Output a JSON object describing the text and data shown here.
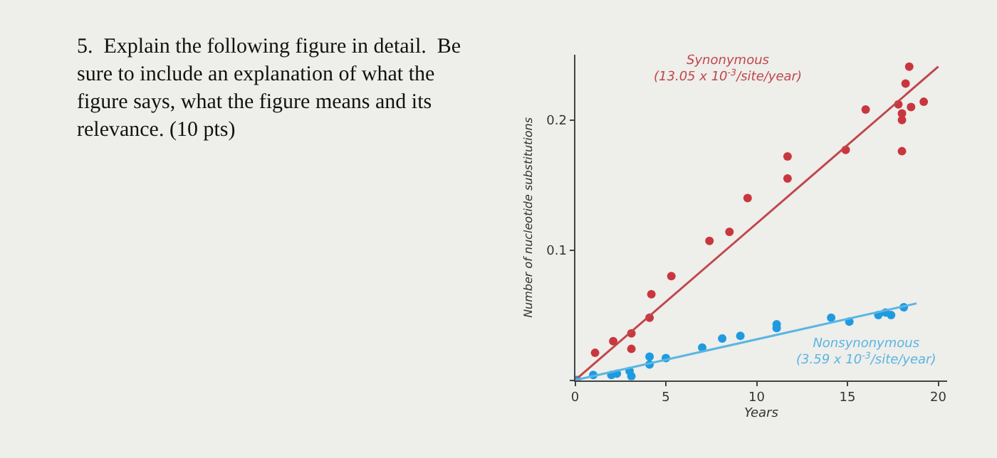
{
  "chart_data": {
    "type": "scatter",
    "xlabel": "Years",
    "ylabel": "Number of nucleotide substitutions",
    "annotations": [
      "5.  Explain the following figure in detail.  Be\nsure to include an explanation of what the\nfigure says, what the figure means and its\nrelevance. (10 pts)"
    ],
    "xlim": [
      0,
      20.5
    ],
    "ylim": [
      0,
      0.25
    ],
    "xticks": [
      0,
      5,
      10,
      15,
      20
    ],
    "yticks": [
      {
        "value": 0,
        "label": null
      },
      0.1,
      0.2
    ],
    "grid": false,
    "legend": false,
    "marker": "circle",
    "series": [
      {
        "color": "#c8373d",
        "x": [
          0.1,
          1.1,
          2.1,
          3.1,
          3.1,
          4.1,
          4.2,
          5.3,
          7.4,
          8.5,
          9.5,
          11.7,
          11.7,
          14.9,
          16.0,
          17.8,
          18.0,
          18.0,
          18.0,
          18.2,
          18.4,
          18.5,
          19.2
        ],
        "values": [
          0.0,
          0.021,
          0.03,
          0.036,
          0.024,
          0.048,
          0.066,
          0.08,
          0.107,
          0.114,
          0.14,
          0.155,
          0.172,
          0.177,
          0.208,
          0.212,
          0.176,
          0.2,
          0.205,
          0.228,
          0.241,
          0.21,
          0.214
        ]
      },
      {
        "type": "line",
        "marker": "none",
        "name": "Synonymous\n(13.05 x 10$^{-3}$/site/year)",
        "color": "#c0474a",
        "x": [
          0,
          20
        ],
        "values": [
          0,
          0.241
        ]
      },
      {
        "color": "#1e9be0",
        "x": [
          0,
          1.0,
          2.0,
          2.3,
          3.0,
          3.1,
          4.1,
          4.1,
          5.0,
          7.0,
          8.1,
          9.1,
          11.1,
          11.1,
          14.1,
          15.1,
          16.7,
          17.1,
          17.4,
          18.1
        ],
        "values": [
          0,
          0.004,
          0.004,
          0.005,
          0.007,
          0.003,
          0.012,
          0.018,
          0.017,
          0.025,
          0.032,
          0.034,
          0.04,
          0.043,
          0.048,
          0.045,
          0.05,
          0.052,
          0.05,
          0.056
        ]
      },
      {
        "type": "line",
        "marker": "none",
        "name": "Nonsynonymous\n(3.59 x 10$^{-3}$/site/year)",
        "color": "#5ab6e2",
        "x": [
          0,
          18.8
        ],
        "values": [
          0,
          0.059
        ]
      }
    ]
  }
}
